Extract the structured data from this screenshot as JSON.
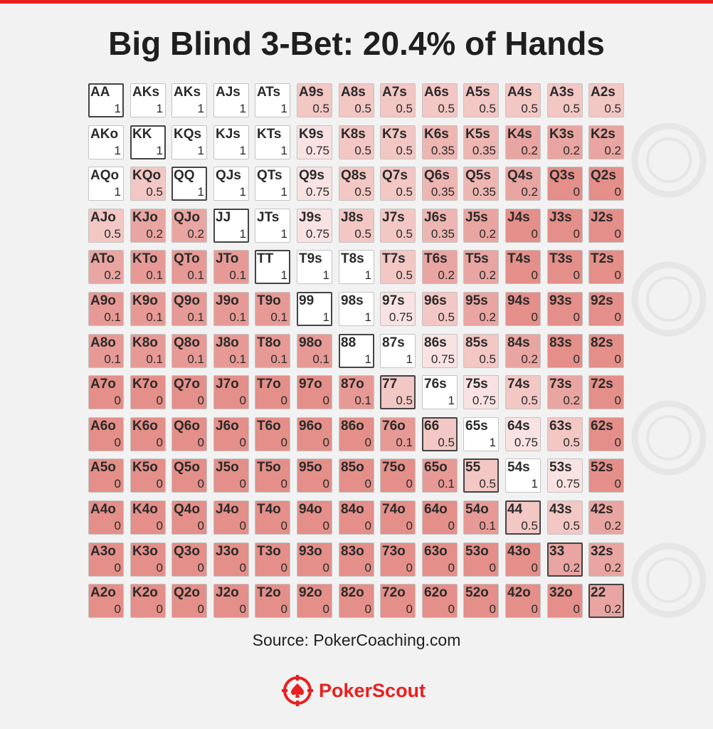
{
  "title": "Big Blind 3-Bet: 20.4% of Hands",
  "source": "Source: PokerCoaching.com",
  "brand": {
    "name": "PokerScout",
    "color": "#e8201f",
    "icon": "poker-chip-spade-icon"
  },
  "colors": {
    "full": "#ffffff",
    "zero": "#e48f89",
    "accent": "#e8201f"
  },
  "chart_data": {
    "type": "heatmap",
    "title": "Big Blind 3-Bet: 20.4% of Hands",
    "ranks": [
      "A",
      "K",
      "Q",
      "J",
      "T",
      "9",
      "8",
      "7",
      "6",
      "5",
      "4",
      "3",
      "2"
    ],
    "rows": [
      {
        "hands": [
          "AA",
          "AKs",
          "AKs",
          "AJs",
          "ATs",
          "A9s",
          "A8s",
          "A7s",
          "A6s",
          "A5s",
          "A4s",
          "A3s",
          "A2s"
        ],
        "values": [
          1,
          1,
          1,
          1,
          1,
          0.5,
          0.5,
          0.5,
          0.5,
          0.5,
          0.5,
          0.5,
          0.5
        ]
      },
      {
        "hands": [
          "AKo",
          "KK",
          "KQs",
          "KJs",
          "KTs",
          "K9s",
          "K8s",
          "K7s",
          "K6s",
          "K5s",
          "K4s",
          "K3s",
          "K2s"
        ],
        "values": [
          1,
          1,
          1,
          1,
          1,
          0.75,
          0.5,
          0.5,
          0.35,
          0.35,
          0.2,
          0.2,
          0.2
        ]
      },
      {
        "hands": [
          "AQo",
          "KQo",
          "QQ",
          "QJs",
          "QTs",
          "Q9s",
          "Q8s",
          "Q7s",
          "Q6s",
          "Q5s",
          "Q4s",
          "Q3s",
          "Q2s"
        ],
        "values": [
          1,
          0.5,
          1,
          1,
          1,
          0.75,
          0.5,
          0.5,
          0.35,
          0.35,
          0.2,
          0,
          0
        ]
      },
      {
        "hands": [
          "AJo",
          "KJo",
          "QJo",
          "JJ",
          "JTs",
          "J9s",
          "J8s",
          "J7s",
          "J6s",
          "J5s",
          "J4s",
          "J3s",
          "J2s"
        ],
        "values": [
          0.5,
          0.2,
          0.2,
          1,
          1,
          0.75,
          0.5,
          0.5,
          0.35,
          0.2,
          0,
          0,
          0
        ]
      },
      {
        "hands": [
          "ATo",
          "KTo",
          "QTo",
          "JTo",
          "TT",
          "T9s",
          "T8s",
          "T7s",
          "T6s",
          "T5s",
          "T4s",
          "T3s",
          "T2s"
        ],
        "values": [
          0.2,
          0.1,
          0.1,
          0.1,
          1,
          1,
          1,
          0.5,
          0.2,
          0.2,
          0,
          0,
          0
        ]
      },
      {
        "hands": [
          "A9o",
          "K9o",
          "Q9o",
          "J9o",
          "T9o",
          "99",
          "98s",
          "97s",
          "96s",
          "95s",
          "94s",
          "93s",
          "92s"
        ],
        "values": [
          0.1,
          0.1,
          0.1,
          0.1,
          0.1,
          1,
          1,
          0.75,
          0.5,
          0.2,
          0,
          0,
          0
        ]
      },
      {
        "hands": [
          "A8o",
          "K8o",
          "Q8o",
          "J8o",
          "T8o",
          "98o",
          "88",
          "87s",
          "86s",
          "85s",
          "84s",
          "83s",
          "82s"
        ],
        "values": [
          0.1,
          0.1,
          0.1,
          0.1,
          0.1,
          0.1,
          1,
          1,
          0.75,
          0.5,
          0.2,
          0,
          0
        ]
      },
      {
        "hands": [
          "A7o",
          "K7o",
          "Q7o",
          "J7o",
          "T7o",
          "97o",
          "87o",
          "77",
          "76s",
          "75s",
          "74s",
          "73s",
          "72s"
        ],
        "values": [
          0,
          0,
          0,
          0,
          0,
          0,
          0.1,
          0.5,
          1,
          0.75,
          0.5,
          0.2,
          0
        ]
      },
      {
        "hands": [
          "A6o",
          "K6o",
          "Q6o",
          "J6o",
          "T6o",
          "96o",
          "86o",
          "76o",
          "66",
          "65s",
          "64s",
          "63s",
          "62s"
        ],
        "values": [
          0,
          0,
          0,
          0,
          0,
          0,
          0,
          0.1,
          0.5,
          1,
          0.75,
          0.5,
          0
        ]
      },
      {
        "hands": [
          "A5o",
          "K5o",
          "Q5o",
          "J5o",
          "T5o",
          "95o",
          "85o",
          "75o",
          "65o",
          "55",
          "54s",
          "53s",
          "52s"
        ],
        "values": [
          0,
          0,
          0,
          0,
          0,
          0,
          0,
          0,
          0.1,
          0.5,
          1,
          0.75,
          0
        ]
      },
      {
        "hands": [
          "A4o",
          "K4o",
          "Q4o",
          "J4o",
          "T4o",
          "94o",
          "84o",
          "74o",
          "64o",
          "54o",
          "44",
          "43s",
          "42s"
        ],
        "values": [
          0,
          0,
          0,
          0,
          0,
          0,
          0,
          0,
          0,
          0.1,
          0.5,
          0.5,
          0.2
        ]
      },
      {
        "hands": [
          "A3o",
          "K3o",
          "Q3o",
          "J3o",
          "T3o",
          "93o",
          "83o",
          "73o",
          "63o",
          "53o",
          "43o",
          "33",
          "32s"
        ],
        "values": [
          0,
          0,
          0,
          0,
          0,
          0,
          0,
          0,
          0,
          0,
          0,
          0.2,
          0.2
        ]
      },
      {
        "hands": [
          "A2o",
          "K2o",
          "Q2o",
          "J2o",
          "T2o",
          "92o",
          "82o",
          "72o",
          "62o",
          "52o",
          "42o",
          "32o",
          "22"
        ],
        "values": [
          0,
          0,
          0,
          0,
          0,
          0,
          0,
          0,
          0,
          0,
          0,
          0,
          0.2
        ]
      }
    ]
  }
}
